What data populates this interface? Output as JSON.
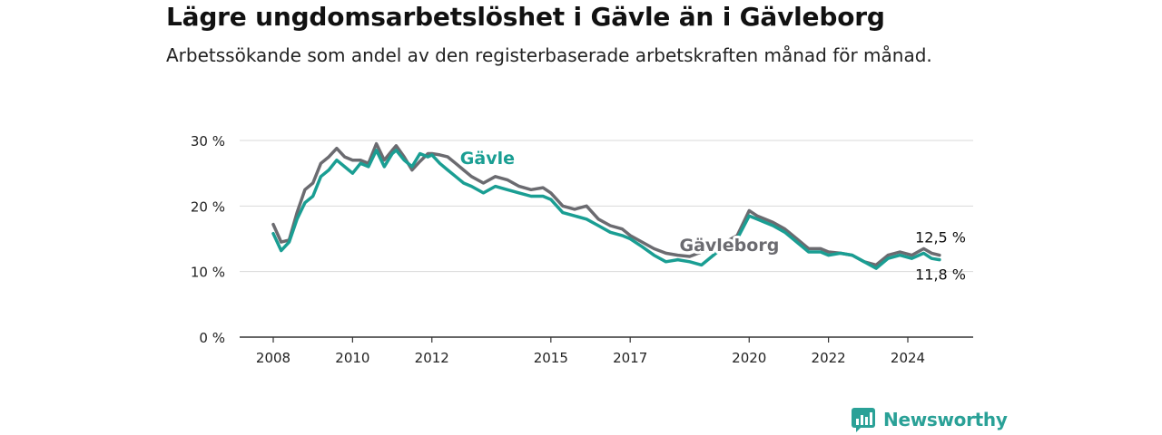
{
  "title": "Lägre ungdomsarbetslöshet i Gävle än i Gävleborg",
  "subtitle": "Arbetssökande som andel av den registerbaserade arbetskraften månad för månad.",
  "brand": {
    "name": "Newsworthy",
    "color": "#2aa197"
  },
  "chart_data": {
    "type": "line",
    "title": "Lägre ungdomsarbetslöshet i Gävle än i Gävleborg",
    "subtitle": "Arbetssökande som andel av den registerbaserade arbetskraften månad för månad.",
    "x_ticks": [
      2008,
      2010,
      2012,
      2015,
      2017,
      2020,
      2022,
      2024
    ],
    "y_ticks": [
      0,
      10,
      20,
      30
    ],
    "y_tick_labels": [
      "0 %",
      "10 %",
      "20 %",
      "30 %"
    ],
    "xlim": [
      2007.6,
      2025.5
    ],
    "ylim": [
      0,
      30
    ],
    "grid": true,
    "legend": "inline labels",
    "series": [
      {
        "name": "Gävleborg",
        "color": "#6b6b70",
        "end_label": "12,5 %",
        "x": [
          2008.0,
          2008.2,
          2008.4,
          2008.6,
          2008.8,
          2009.0,
          2009.2,
          2009.4,
          2009.6,
          2009.8,
          2010.0,
          2010.2,
          2010.4,
          2010.6,
          2010.8,
          2011.0,
          2011.1,
          2011.3,
          2011.5,
          2011.7,
          2011.9,
          2012.0,
          2012.2,
          2012.4,
          2012.6,
          2012.8,
          2013.0,
          2013.3,
          2013.6,
          2013.9,
          2014.2,
          2014.5,
          2014.8,
          2015.0,
          2015.3,
          2015.6,
          2015.9,
          2016.2,
          2016.5,
          2016.8,
          2017.0,
          2017.3,
          2017.6,
          2017.9,
          2018.2,
          2018.5,
          2018.8,
          2019.1,
          2019.4,
          2019.7,
          2020.0,
          2020.2,
          2020.4,
          2020.6,
          2020.9,
          2021.2,
          2021.5,
          2021.8,
          2022.0,
          2022.3,
          2022.6,
          2022.9,
          2023.2,
          2023.5,
          2023.8,
          2024.1,
          2024.4,
          2024.6,
          2024.8
        ],
        "values": [
          17.2,
          14.5,
          14.8,
          19.0,
          22.5,
          23.5,
          26.5,
          27.5,
          28.8,
          27.5,
          27.0,
          27.0,
          26.5,
          29.5,
          27.0,
          28.5,
          29.2,
          27.5,
          25.5,
          26.8,
          28.0,
          28.0,
          27.8,
          27.5,
          26.5,
          25.5,
          24.5,
          23.5,
          24.5,
          24.0,
          23.0,
          22.5,
          22.8,
          22.0,
          20.0,
          19.5,
          20.0,
          18.0,
          17.0,
          16.5,
          15.5,
          14.5,
          13.5,
          12.8,
          12.5,
          12.3,
          13.0,
          13.5,
          14.5,
          15.5,
          19.3,
          18.5,
          18.0,
          17.5,
          16.5,
          15.0,
          13.5,
          13.5,
          13.0,
          12.8,
          12.5,
          11.5,
          11.0,
          12.5,
          13.0,
          12.5,
          13.5,
          12.8,
          12.5
        ]
      },
      {
        "name": "Gävle",
        "color": "#1a9e93",
        "end_label": "11,8 %",
        "x": [
          2008.0,
          2008.2,
          2008.4,
          2008.6,
          2008.8,
          2009.0,
          2009.2,
          2009.4,
          2009.6,
          2009.8,
          2010.0,
          2010.2,
          2010.4,
          2010.6,
          2010.8,
          2011.0,
          2011.1,
          2011.3,
          2011.5,
          2011.7,
          2011.9,
          2012.0,
          2012.2,
          2012.4,
          2012.6,
          2012.8,
          2013.0,
          2013.3,
          2013.6,
          2013.9,
          2014.2,
          2014.5,
          2014.8,
          2015.0,
          2015.3,
          2015.6,
          2015.9,
          2016.2,
          2016.5,
          2016.8,
          2017.0,
          2017.3,
          2017.6,
          2017.9,
          2018.2,
          2018.5,
          2018.8,
          2019.1,
          2019.4,
          2019.7,
          2020.0,
          2020.2,
          2020.4,
          2020.6,
          2020.9,
          2021.2,
          2021.5,
          2021.8,
          2022.0,
          2022.3,
          2022.6,
          2022.9,
          2023.2,
          2023.5,
          2023.8,
          2024.1,
          2024.4,
          2024.6,
          2024.8
        ],
        "values": [
          15.8,
          13.2,
          14.5,
          18.0,
          20.5,
          21.5,
          24.5,
          25.5,
          27.0,
          26.0,
          25.0,
          26.5,
          26.0,
          28.5,
          26.0,
          28.0,
          28.5,
          27.0,
          26.0,
          28.0,
          27.5,
          27.8,
          26.5,
          25.5,
          24.5,
          23.5,
          23.0,
          22.0,
          23.0,
          22.5,
          22.0,
          21.5,
          21.5,
          21.0,
          19.0,
          18.5,
          18.0,
          17.0,
          16.0,
          15.5,
          15.0,
          13.8,
          12.5,
          11.5,
          11.8,
          11.5,
          11.0,
          12.5,
          14.0,
          15.0,
          18.5,
          18.0,
          17.5,
          17.0,
          16.0,
          14.5,
          13.0,
          13.0,
          12.5,
          12.8,
          12.5,
          11.5,
          10.5,
          12.0,
          12.5,
          12.0,
          12.8,
          12.0,
          11.8
        ]
      }
    ],
    "inline_labels": [
      {
        "series": "Gävle",
        "text": "Gävle",
        "x": 2013.4,
        "y": 26.4
      },
      {
        "series": "Gävleborg",
        "text": "Gävleborg",
        "x": 2019.5,
        "y": 13.1
      }
    ]
  }
}
